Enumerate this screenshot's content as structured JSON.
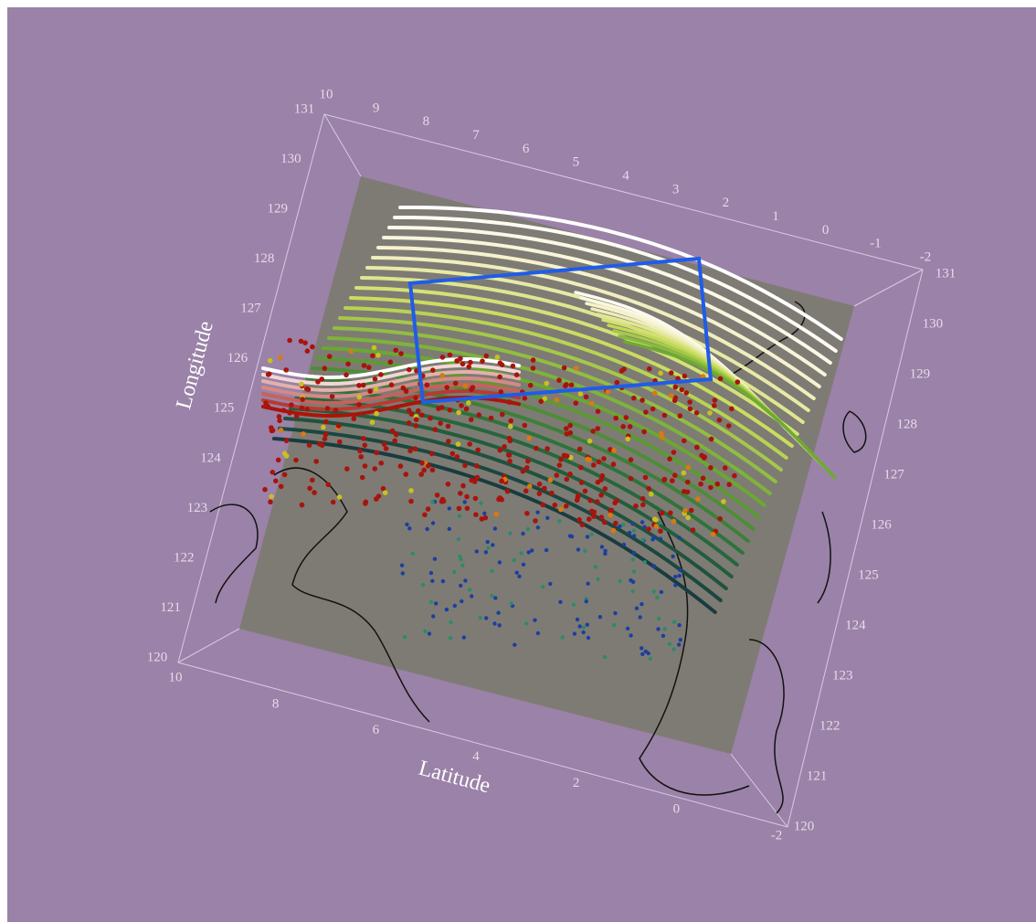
{
  "axes": {
    "longitude_title": "Longitude",
    "latitude_title": "Latitude",
    "latitude_ticks_top": [
      10,
      9,
      8,
      7,
      6,
      5,
      4,
      3,
      2,
      1,
      0,
      -1,
      -2
    ],
    "latitude_ticks_bottom": [
      10,
      8,
      6,
      4,
      2,
      0,
      -2
    ],
    "longitude_ticks_left": [
      131,
      130,
      129,
      128,
      127,
      126,
      125,
      124,
      123,
      122,
      121,
      120
    ],
    "longitude_ticks_right": [
      131,
      130,
      129,
      128,
      127,
      126,
      125,
      124,
      123,
      122,
      121,
      120
    ]
  }
}
